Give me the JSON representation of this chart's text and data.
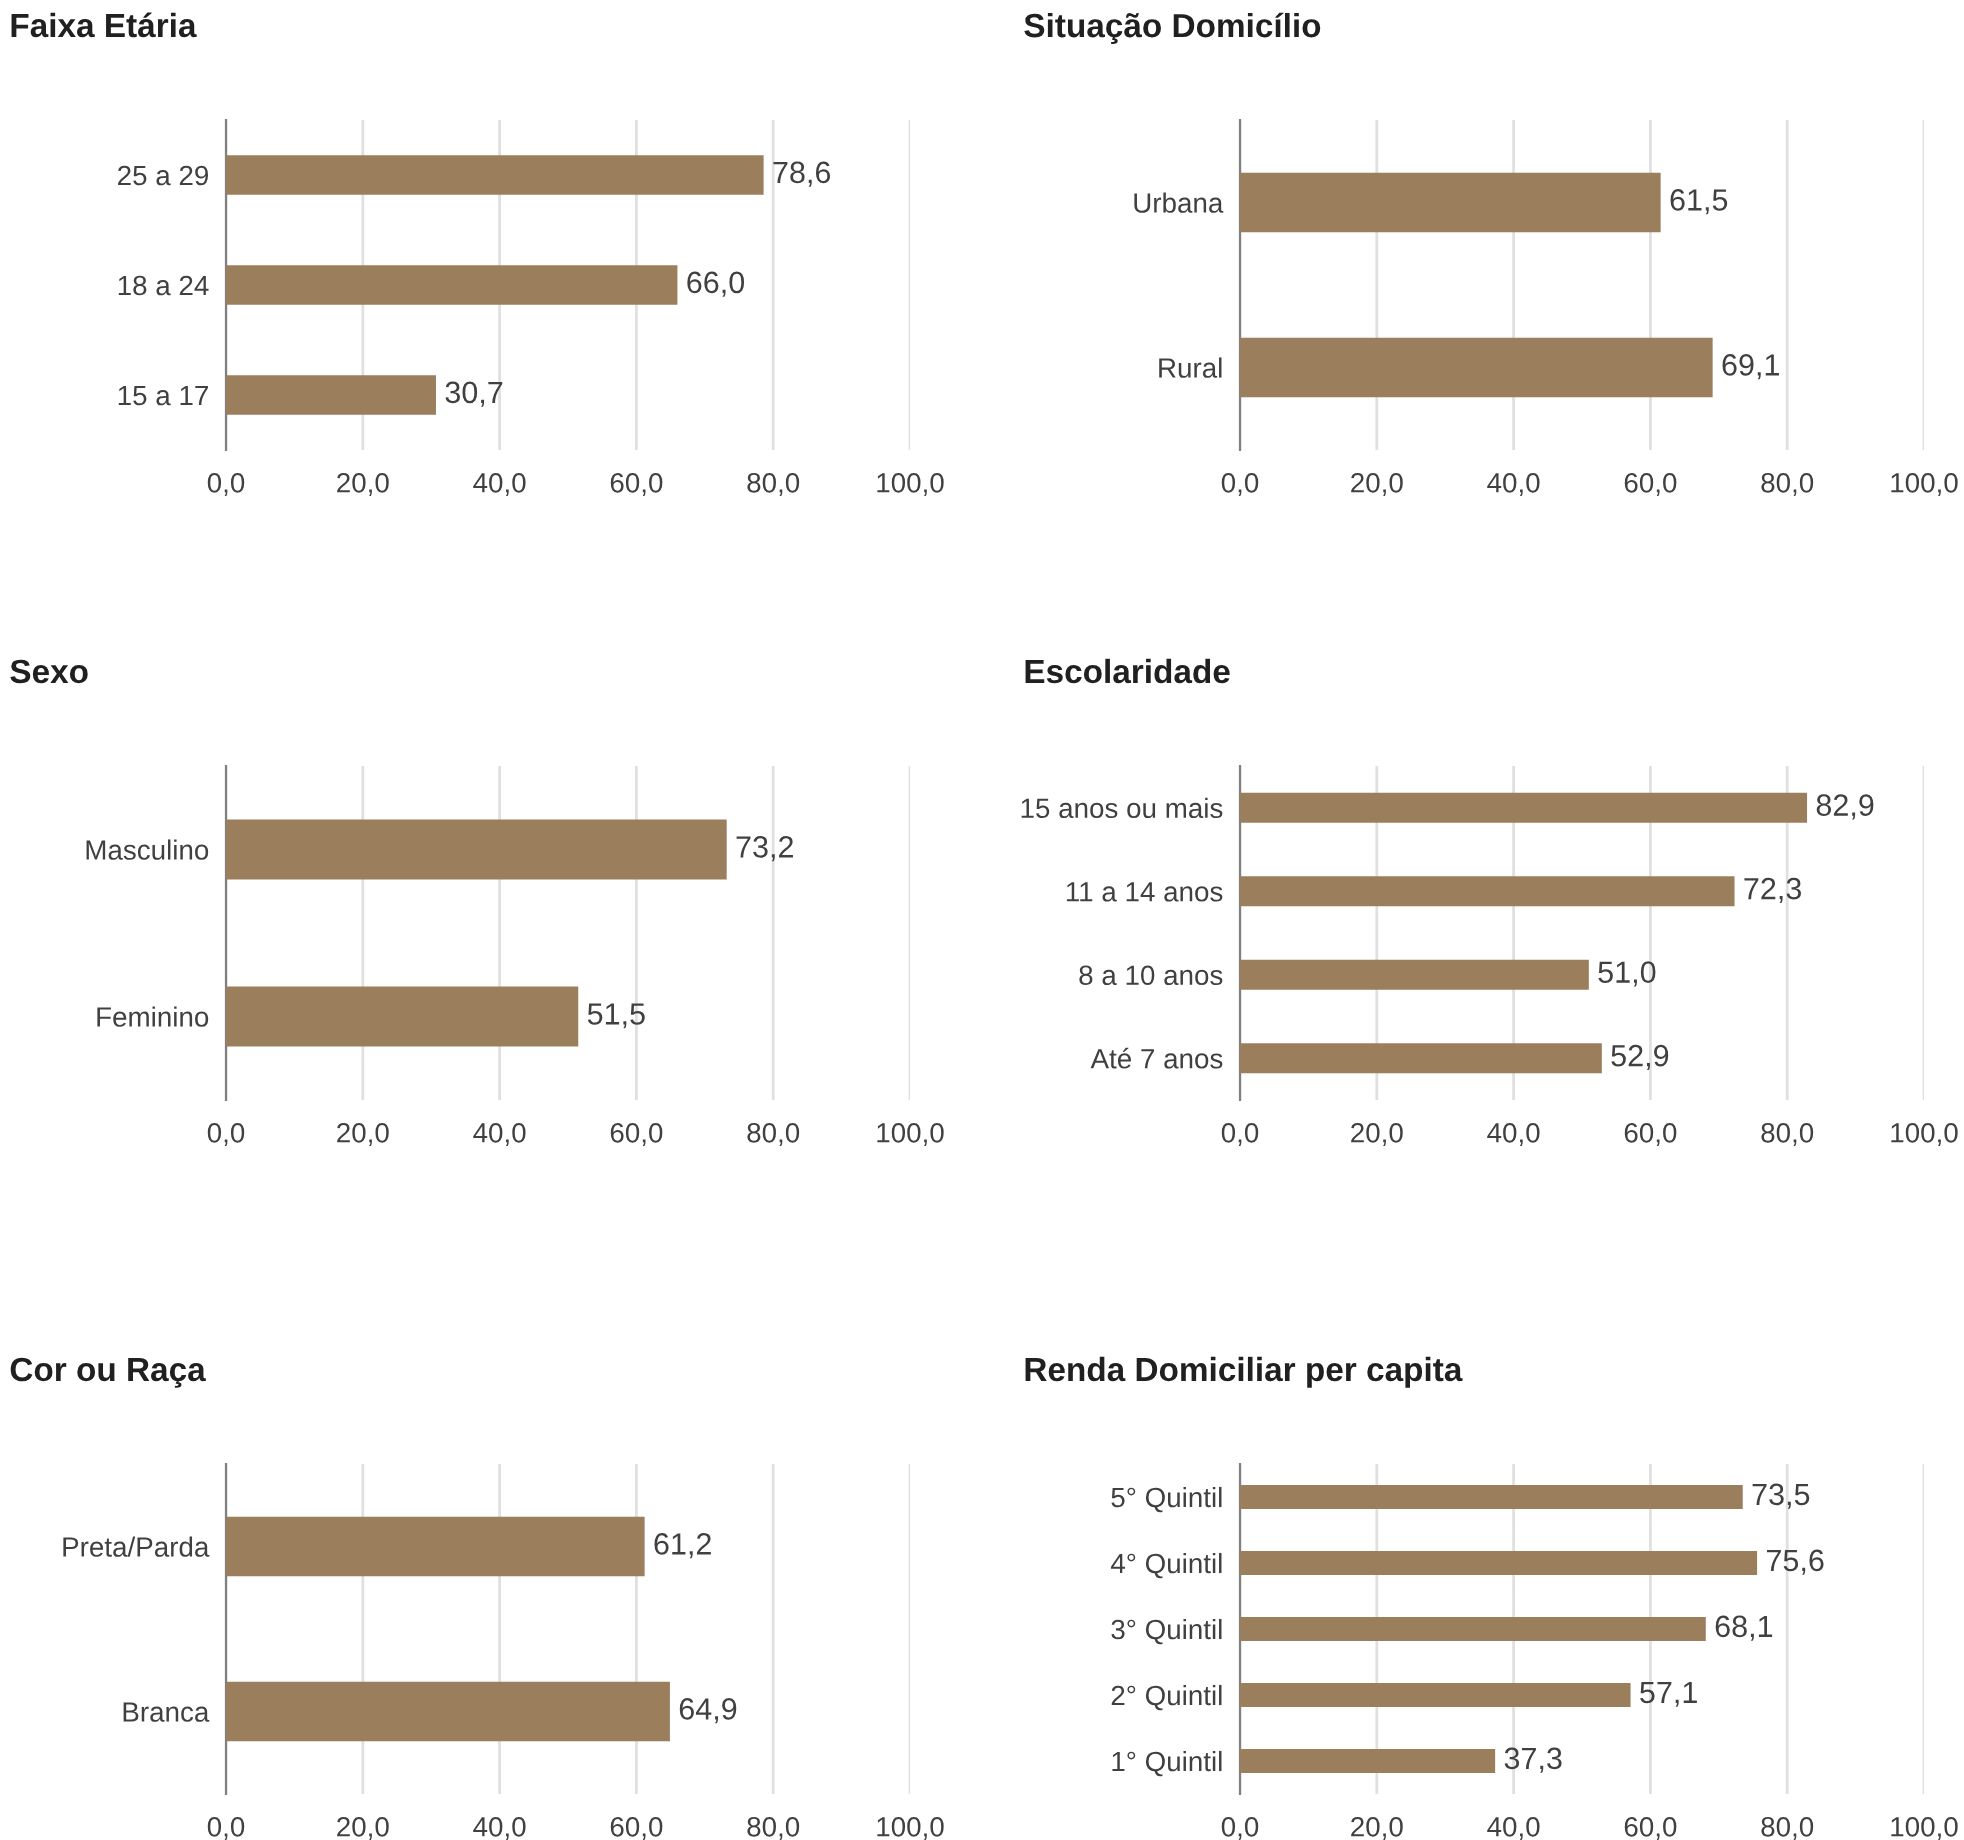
{
  "chart_data": [
    {
      "type": "bar",
      "orientation": "horizontal",
      "title": "Faixa Etária",
      "categories": [
        "25 a 29",
        "18 a 24",
        "15 a 17"
      ],
      "values": [
        78.6,
        66.0,
        30.7
      ],
      "value_labels": [
        "78,6",
        "66,0",
        "30,7"
      ],
      "color": "#9b7f5c",
      "xlim": [
        0,
        100
      ],
      "xticks": [
        {
          "value": 0,
          "label": "0,0"
        },
        {
          "value": 20,
          "label": "20,0"
        },
        {
          "value": 40,
          "label": "40,0"
        },
        {
          "value": 60,
          "label": "60,0"
        },
        {
          "value": 80,
          "label": "80,0"
        },
        {
          "value": 100,
          "label": "100,0"
        }
      ],
      "grid": "x"
    },
    {
      "type": "bar",
      "orientation": "horizontal",
      "title": "Situação Domicílio",
      "categories": [
        "Urbana",
        "Rural"
      ],
      "values": [
        61.5,
        69.1
      ],
      "value_labels": [
        "61,5",
        "69,1"
      ],
      "color": "#9b7f5c",
      "xlim": [
        0,
        100
      ],
      "xticks": [
        {
          "value": 0,
          "label": "0,0"
        },
        {
          "value": 20,
          "label": "20,0"
        },
        {
          "value": 40,
          "label": "40,0"
        },
        {
          "value": 60,
          "label": "60,0"
        },
        {
          "value": 80,
          "label": "80,0"
        },
        {
          "value": 100,
          "label": "100,0"
        }
      ],
      "grid": "x"
    },
    {
      "type": "bar",
      "orientation": "horizontal",
      "title": "Sexo",
      "categories": [
        "Masculino",
        "Feminino"
      ],
      "values": [
        73.2,
        51.5
      ],
      "value_labels": [
        "73,2",
        "51,5"
      ],
      "color": "#9b7f5c",
      "xlim": [
        0,
        100
      ],
      "xticks": [
        {
          "value": 0,
          "label": "0,0"
        },
        {
          "value": 20,
          "label": "20,0"
        },
        {
          "value": 40,
          "label": "40,0"
        },
        {
          "value": 60,
          "label": "60,0"
        },
        {
          "value": 80,
          "label": "80,0"
        },
        {
          "value": 100,
          "label": "100,0"
        }
      ],
      "grid": "x"
    },
    {
      "type": "bar",
      "orientation": "horizontal",
      "title": "Escolaridade",
      "categories": [
        "15 anos ou mais",
        "11 a 14 anos",
        "8 a 10 anos",
        "Até 7 anos"
      ],
      "values": [
        82.9,
        72.3,
        51.0,
        52.9
      ],
      "value_labels": [
        "82,9",
        "72,3",
        "51,0",
        "52,9"
      ],
      "color": "#9b7f5c",
      "xlim": [
        0,
        100
      ],
      "xticks": [
        {
          "value": 0,
          "label": "0,0"
        },
        {
          "value": 20,
          "label": "20,0"
        },
        {
          "value": 40,
          "label": "40,0"
        },
        {
          "value": 60,
          "label": "60,0"
        },
        {
          "value": 80,
          "label": "80,0"
        },
        {
          "value": 100,
          "label": "100,0"
        }
      ],
      "grid": "x"
    },
    {
      "type": "bar",
      "orientation": "horizontal",
      "title": "Cor ou Raça",
      "categories": [
        "Preta/Parda",
        "Branca"
      ],
      "values": [
        61.2,
        64.9
      ],
      "value_labels": [
        "61,2",
        "64,9"
      ],
      "color": "#9b7f5c",
      "xlim": [
        0,
        100
      ],
      "xticks": [
        {
          "value": 0,
          "label": "0,0"
        },
        {
          "value": 20,
          "label": "20,0"
        },
        {
          "value": 40,
          "label": "40,0"
        },
        {
          "value": 60,
          "label": "60,0"
        },
        {
          "value": 80,
          "label": "80,0"
        },
        {
          "value": 100,
          "label": "100,0"
        }
      ],
      "grid": "x"
    },
    {
      "type": "bar",
      "orientation": "horizontal",
      "title": "Renda Domiciliar per capita",
      "categories": [
        "5° Quintil",
        "4° Quintil",
        "3° Quintil",
        "2° Quintil",
        "1° Quintil"
      ],
      "values": [
        73.5,
        75.6,
        68.1,
        57.1,
        37.3
      ],
      "value_labels": [
        "73,5",
        "75,6",
        "68,1",
        "57,1",
        "37,3"
      ],
      "color": "#9b7f5c",
      "xlim": [
        0,
        100
      ],
      "xticks": [
        {
          "value": 0,
          "label": "0,0"
        },
        {
          "value": 20,
          "label": "20,0"
        },
        {
          "value": 40,
          "label": "40,0"
        },
        {
          "value": 60,
          "label": "60,0"
        },
        {
          "value": 80,
          "label": "80,0"
        },
        {
          "value": 100,
          "label": "100,0"
        }
      ],
      "grid": "x"
    }
  ]
}
